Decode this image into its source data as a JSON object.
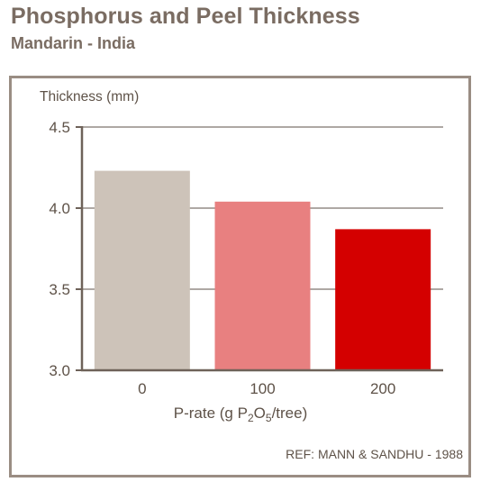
{
  "title": "Phosphorus and Peel Thickness",
  "subtitle": "Mandarin - India",
  "reference": "REF: MANN & SANDHU - 1988",
  "chart_data": {
    "type": "bar",
    "title": "Phosphorus and Peel Thickness",
    "subtitle": "Mandarin - India",
    "ylabel": "Thickness (mm)",
    "xlabel": {
      "parts": [
        {
          "text": "P-rate (g P"
        },
        {
          "text": "2",
          "sub": true
        },
        {
          "text": "O"
        },
        {
          "text": "5",
          "sub": true
        },
        {
          "text": "/tree)"
        }
      ]
    },
    "categories": [
      "0",
      "100",
      "200"
    ],
    "values": [
      4.23,
      4.04,
      3.87
    ],
    "ylim": [
      3.0,
      4.5
    ],
    "yticks": [
      3.0,
      3.5,
      4.0,
      4.5
    ],
    "ytick_labels": [
      "3.0",
      "3.5",
      "4.0",
      "4.5"
    ],
    "grid": true,
    "bar_colors": [
      "#cdc3b9",
      "#e88080",
      "#d40000"
    ],
    "axis_color": "#6e6259",
    "grid_color": "#5e5248"
  }
}
